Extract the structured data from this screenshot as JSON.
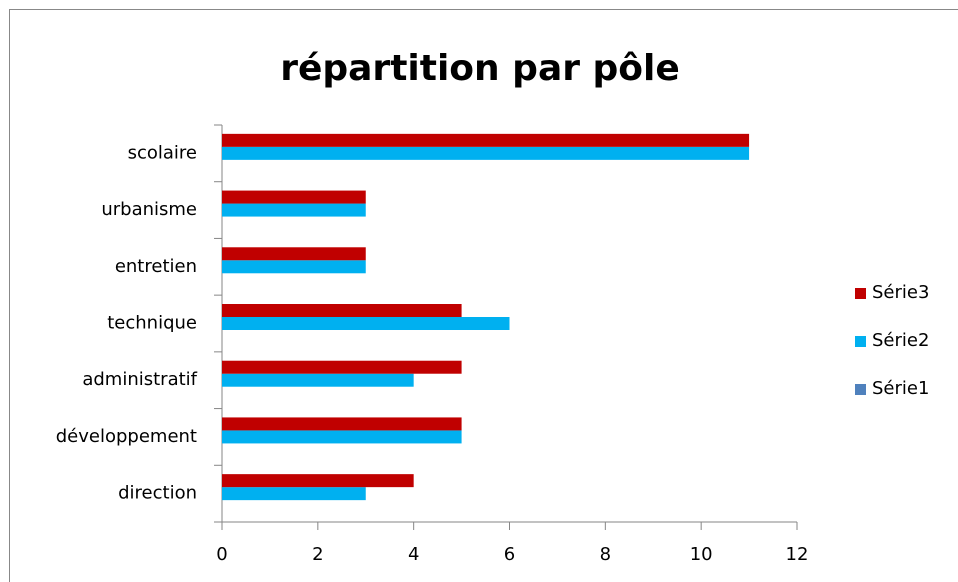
{
  "chart_data": {
    "type": "bar",
    "orientation": "horizontal",
    "title": "répartition par pôle",
    "categories": [
      "direction",
      "développement",
      "administratif",
      "technique",
      "entretien",
      "urbanisme",
      "scolaire"
    ],
    "series": [
      {
        "name": "Série1",
        "color": "#4f81bd",
        "values": [
          null,
          null,
          null,
          null,
          null,
          null,
          null
        ]
      },
      {
        "name": "Série2",
        "color": "#00b0f0",
        "values": [
          3,
          5,
          4,
          6,
          3,
          3,
          11
        ]
      },
      {
        "name": "Série3",
        "color": "#c00000",
        "values": [
          4,
          5,
          5,
          5,
          3,
          3,
          11
        ]
      }
    ],
    "xlim": [
      0,
      12
    ],
    "xticks": [
      0,
      2,
      4,
      6,
      8,
      10,
      12
    ],
    "grid": false,
    "legend": "right"
  }
}
